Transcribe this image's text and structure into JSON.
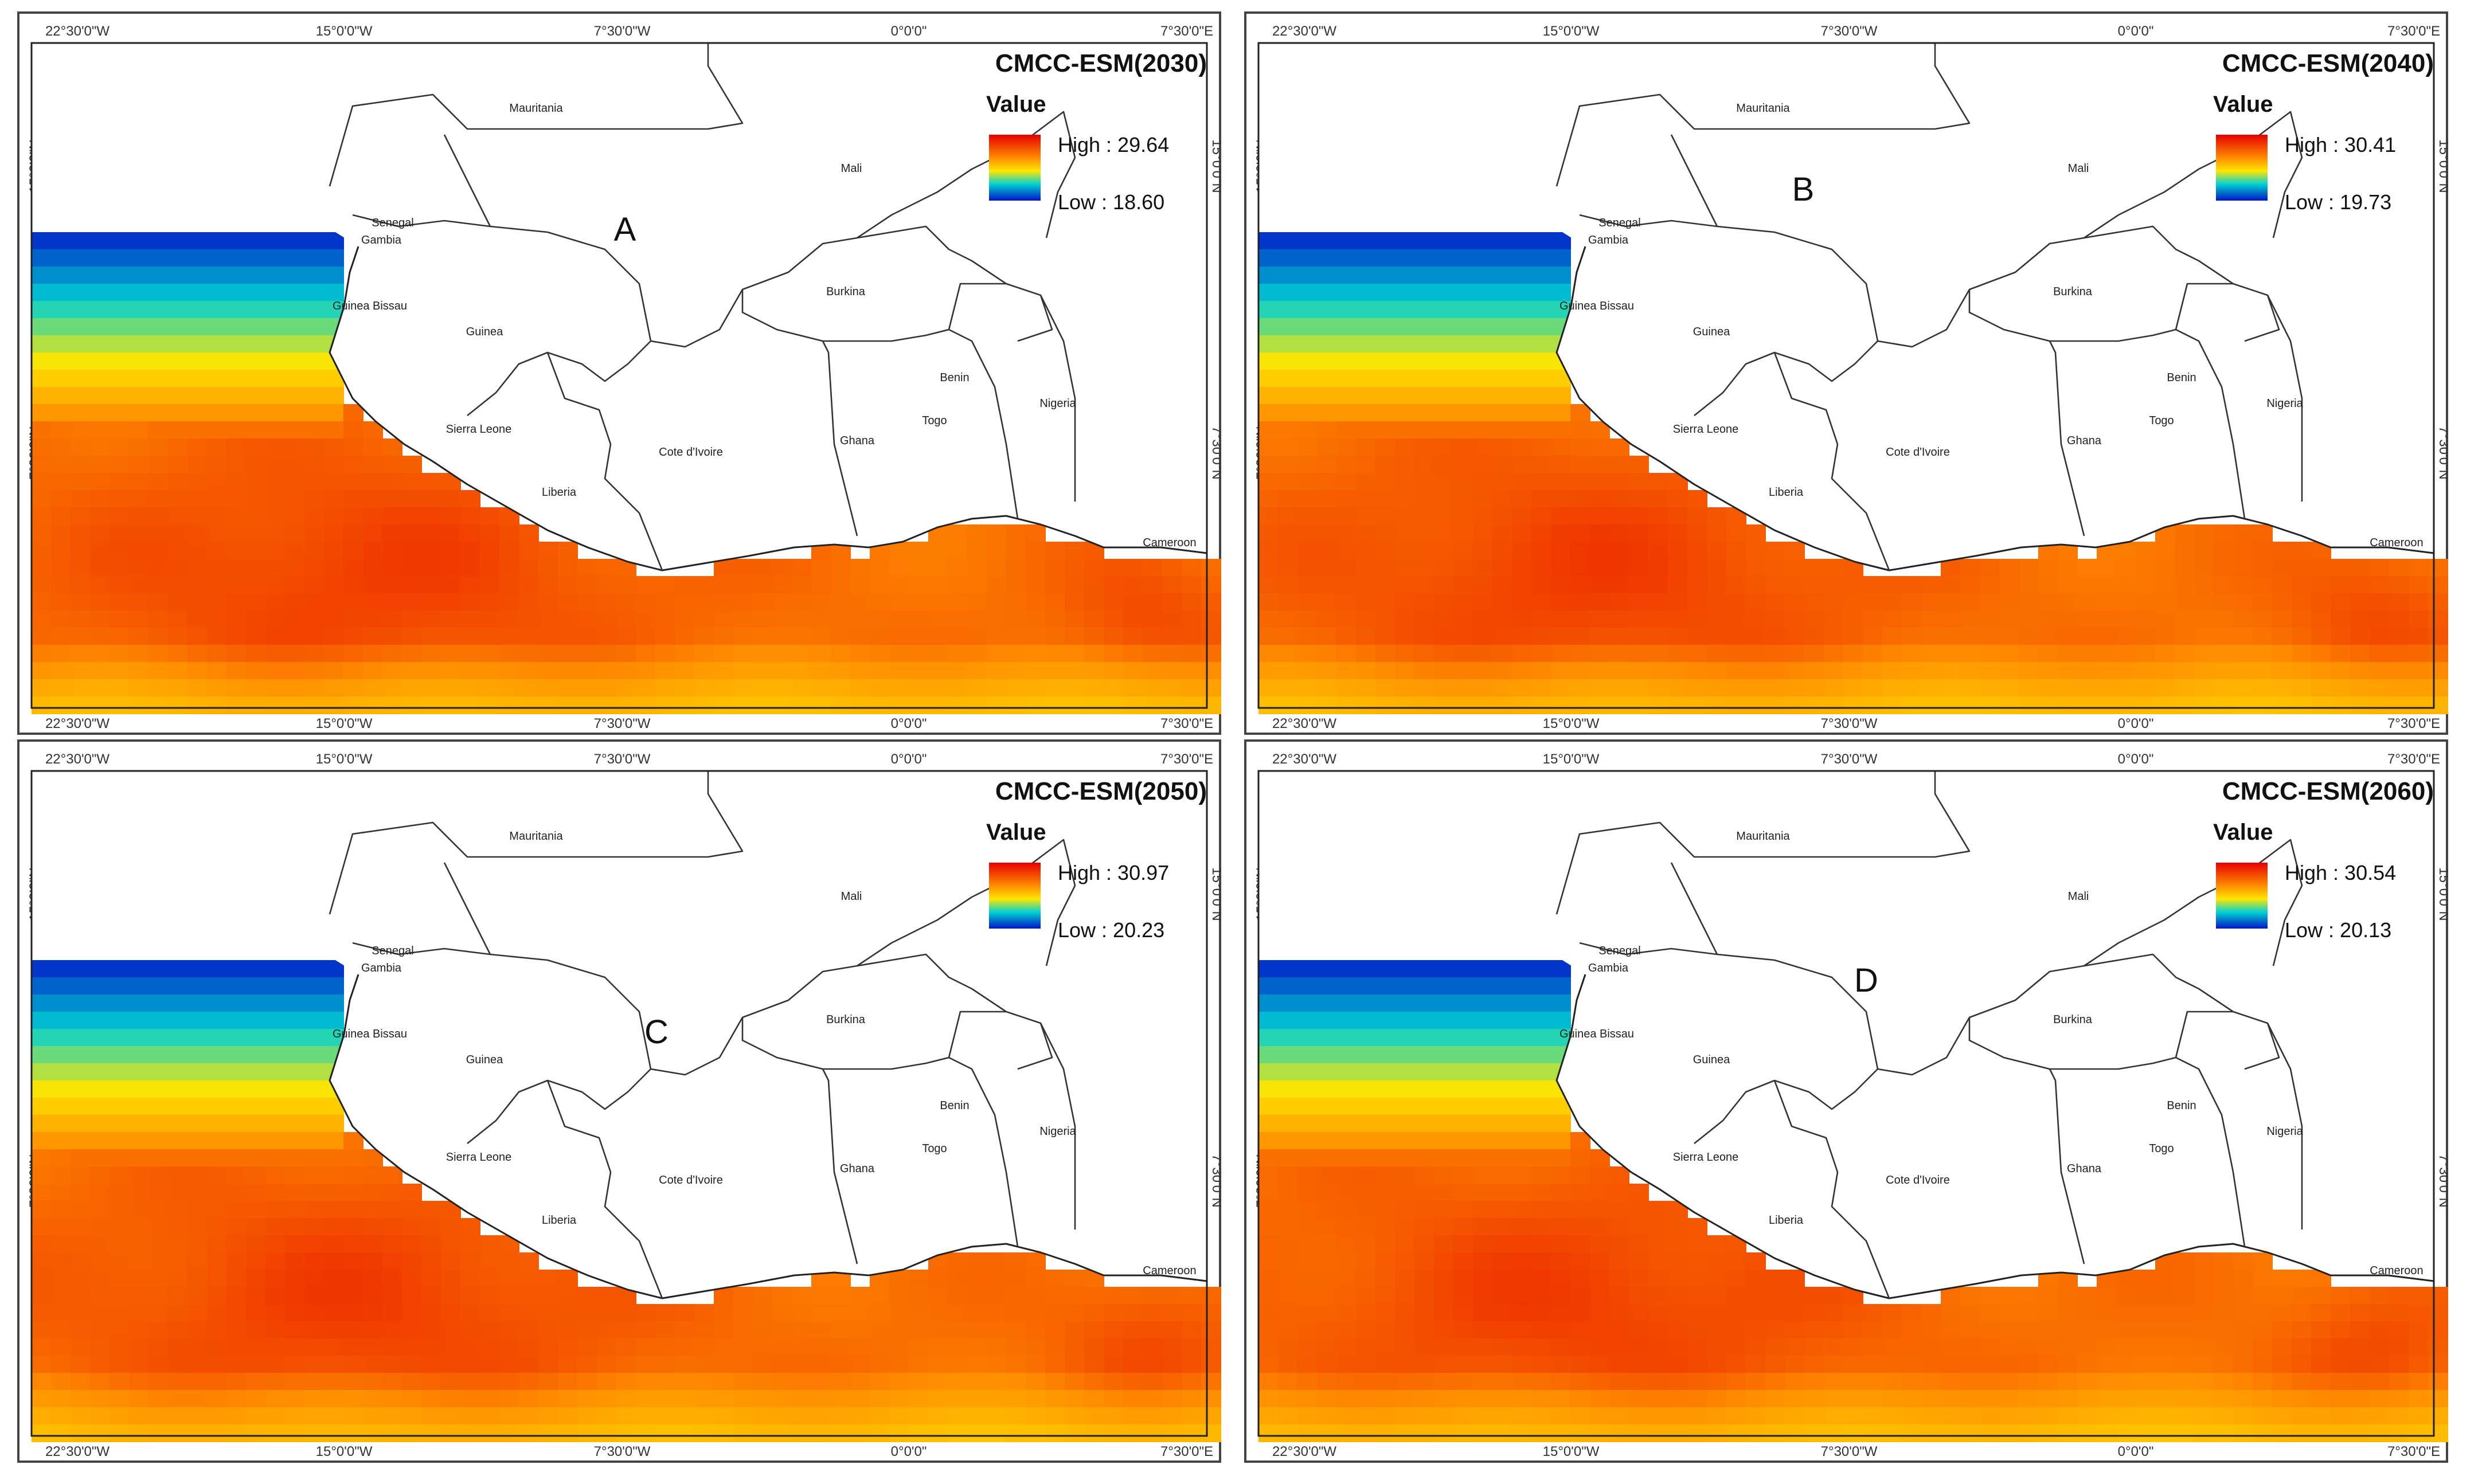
{
  "figure": {
    "axis_ticks": {
      "longitude": [
        "22°30'0\"W",
        "15°0'0\"W",
        "7°30'0\"W",
        "0°0'0\"",
        "7°30'0\"E"
      ],
      "latitude": [
        "15°0'0\"N",
        "7°30'0\"N"
      ]
    },
    "country_labels": [
      "Mauritania",
      "Mali",
      "Senegal",
      "Gambia",
      "Guinea Bissau",
      "Guinea",
      "Burkina",
      "Sierra Leone",
      "Cote d'Ivoire",
      "Liberia",
      "Ghana",
      "Togo",
      "Benin",
      "Nigeria",
      "Cameroon"
    ],
    "colors": {
      "high": "#e60000",
      "orange": "#ff8c00",
      "yellow": "#ffe600",
      "cyan": "#00d2d2",
      "low": "#0014c8"
    },
    "panels": [
      {
        "letter": "A",
        "title": "CMCC-ESM(2030)",
        "legend": {
          "title": "Value",
          "high": "High : 29.64",
          "low": "Low : 18.60"
        }
      },
      {
        "letter": "B",
        "title": "CMCC-ESM(2040)",
        "legend": {
          "title": "Value",
          "high": "High : 30.41",
          "low": "Low : 19.73"
        }
      },
      {
        "letter": "C",
        "title": "CMCC-ESM(2050)",
        "legend": {
          "title": "Value",
          "high": "High : 30.97",
          "low": "Low : 20.23"
        }
      },
      {
        "letter": "D",
        "title": "CMCC-ESM(2060)",
        "legend": {
          "title": "Value",
          "high": "High : 30.54",
          "low": "Low : 20.13"
        }
      }
    ]
  }
}
